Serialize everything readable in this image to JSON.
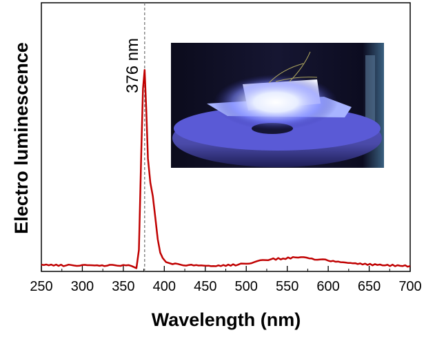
{
  "chart_data": {
    "type": "line",
    "title": "",
    "xlabel": "Wavelength (nm)",
    "ylabel": "Electro luminescence",
    "xlim": [
      250,
      700
    ],
    "ylim": [
      0,
      1
    ],
    "xticks": [
      250,
      300,
      350,
      400,
      450,
      500,
      550,
      600,
      650,
      700
    ],
    "xtick_labels": [
      "250",
      "300",
      "350",
      "400",
      "450",
      "500",
      "550",
      "600",
      "650",
      "700"
    ],
    "yticks": [],
    "grid": false,
    "legend": "none",
    "series": [
      {
        "name": "Electroluminescence",
        "color": "#c00000",
        "x": [
          250,
          280,
          300,
          330,
          350,
          360,
          366,
          369,
          372,
          374,
          376,
          378,
          380,
          383,
          386,
          389,
          392,
          395,
          398,
          402,
          410,
          430,
          460,
          490,
          510,
          530,
          545,
          560,
          580,
          600,
          630,
          660,
          700
        ],
        "y": [
          0.025,
          0.022,
          0.024,
          0.021,
          0.024,
          0.02,
          0.012,
          0.08,
          0.45,
          0.68,
          0.75,
          0.6,
          0.42,
          0.33,
          0.28,
          0.2,
          0.12,
          0.07,
          0.05,
          0.035,
          0.027,
          0.024,
          0.02,
          0.025,
          0.035,
          0.045,
          0.048,
          0.052,
          0.048,
          0.04,
          0.03,
          0.024,
          0.02
        ]
      }
    ],
    "annotations": [
      {
        "text": "376 nm",
        "x": 376,
        "style": "dashed vertical line"
      }
    ]
  },
  "inset": {
    "description_icon": "led-device-photo"
  }
}
